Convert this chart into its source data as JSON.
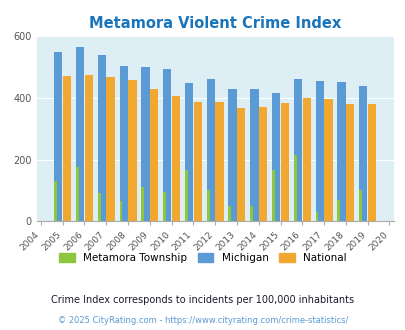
{
  "title": "Metamora Violent Crime Index",
  "years": [
    2004,
    2005,
    2006,
    2007,
    2008,
    2009,
    2010,
    2011,
    2012,
    2013,
    2014,
    2015,
    2016,
    2017,
    2018,
    2019,
    2020
  ],
  "metamora": [
    0,
    130,
    175,
    90,
    65,
    110,
    95,
    165,
    100,
    50,
    50,
    165,
    215,
    28,
    70,
    100,
    0
  ],
  "michigan": [
    0,
    550,
    565,
    540,
    505,
    500,
    495,
    447,
    460,
    430,
    430,
    415,
    462,
    455,
    452,
    438,
    0
  ],
  "national": [
    0,
    470,
    473,
    468,
    457,
    429,
    405,
    387,
    387,
    368,
    372,
    383,
    400,
    397,
    381,
    379,
    0
  ],
  "colors": {
    "metamora": "#8dc63f",
    "michigan": "#5b9bd5",
    "national": "#f0a830"
  },
  "bg_color": "#ddeef5",
  "ylim": [
    0,
    600
  ],
  "yticks": [
    0,
    200,
    400,
    600
  ],
  "legend_labels": [
    "Metamora Township",
    "Michigan",
    "National"
  ],
  "footnote1": "Crime Index corresponds to incidents per 100,000 inhabitants",
  "footnote2": "© 2025 CityRating.com - https://www.cityrating.com/crime-statistics/",
  "title_color": "#1a75bb",
  "footnote1_color": "#1a1a2e",
  "footnote2_color": "#5b9bd5"
}
